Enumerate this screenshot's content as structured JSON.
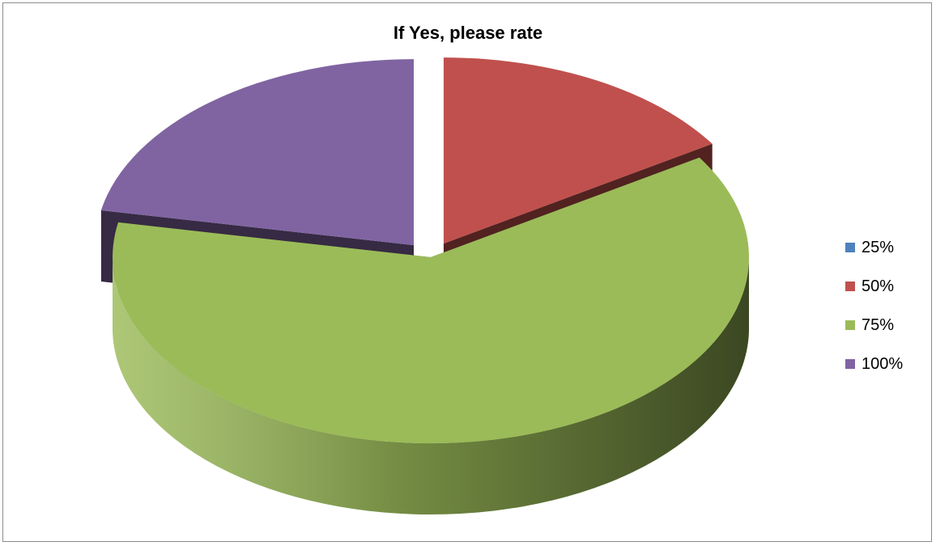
{
  "chart_data": {
    "type": "pie",
    "title": "If Yes, please rate",
    "categories": [
      "25%",
      "50%",
      "75%",
      "100%"
    ],
    "values": [
      0,
      16,
      62,
      22
    ],
    "colors": [
      "#4F81BD",
      "#C0504D",
      "#9BBB59",
      "#8064A2"
    ],
    "legend_position": "right",
    "three_d": true,
    "exploded": true
  }
}
